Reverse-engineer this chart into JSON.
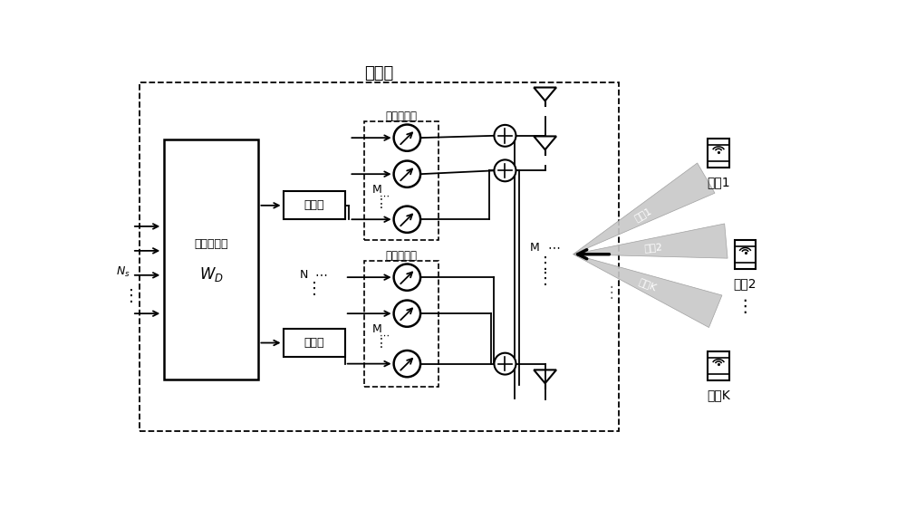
{
  "title": "基站端",
  "bg_color": "#ffffff",
  "text_color": "#000000",
  "gray_beam": "#c8c8c8",
  "font_size_title": 13,
  "font_size_label": 10,
  "font_size_small": 9,
  "font_size_tiny": 8,
  "users": [
    "用户1",
    "用户2",
    "用户K"
  ],
  "beams": [
    "波束1",
    "波束2",
    "波束K"
  ],
  "digital_label": "数字预编码",
  "digital_sub": "W_D",
  "rf_label": "射频链",
  "analog_label": "模拟预编码",
  "N_label": "N",
  "M_label": "M",
  "Ns_label": "N_s"
}
